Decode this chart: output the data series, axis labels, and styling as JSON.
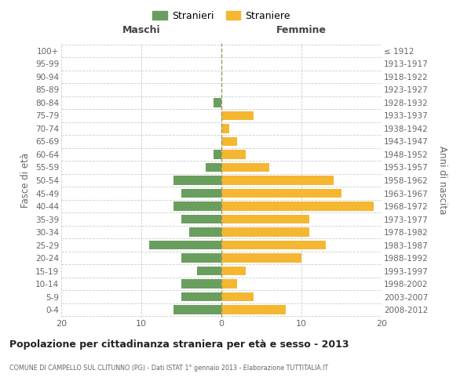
{
  "age_groups": [
    "0-4",
    "5-9",
    "10-14",
    "15-19",
    "20-24",
    "25-29",
    "30-34",
    "35-39",
    "40-44",
    "45-49",
    "50-54",
    "55-59",
    "60-64",
    "65-69",
    "70-74",
    "75-79",
    "80-84",
    "85-89",
    "90-94",
    "95-99",
    "100+"
  ],
  "birth_years": [
    "2008-2012",
    "2003-2007",
    "1998-2002",
    "1993-1997",
    "1988-1992",
    "1983-1987",
    "1978-1982",
    "1973-1977",
    "1968-1972",
    "1963-1967",
    "1958-1962",
    "1953-1957",
    "1948-1952",
    "1943-1947",
    "1938-1942",
    "1933-1937",
    "1928-1932",
    "1923-1927",
    "1918-1922",
    "1913-1917",
    "≤ 1912"
  ],
  "stranieri": [
    6,
    5,
    5,
    3,
    5,
    9,
    4,
    5,
    6,
    5,
    6,
    2,
    1,
    0,
    0,
    0,
    1,
    0,
    0,
    0,
    0
  ],
  "straniere": [
    8,
    4,
    2,
    3,
    10,
    13,
    11,
    11,
    19,
    15,
    14,
    6,
    3,
    2,
    1,
    4,
    0,
    0,
    0,
    0,
    0
  ],
  "male_color": "#6a9e5e",
  "female_color": "#f5b731",
  "background_color": "#ffffff",
  "grid_color": "#cccccc",
  "title": "Popolazione per cittadinanza straniera per età e sesso - 2013",
  "subtitle": "COMUNE DI CAMPELLO SUL CLITUNNO (PG) - Dati ISTAT 1° gennaio 2013 - Elaborazione TUTTITALIA.IT",
  "xlabel_left": "Maschi",
  "xlabel_right": "Femmine",
  "ylabel_left": "Fasce di età",
  "ylabel_right": "Anni di nascita",
  "legend_male": "Stranieri",
  "legend_female": "Straniere",
  "xlim": 20,
  "xticks": [
    -20,
    -10,
    0,
    10,
    20
  ],
  "xticklabels": [
    "20",
    "10",
    "0",
    "10",
    "20"
  ]
}
